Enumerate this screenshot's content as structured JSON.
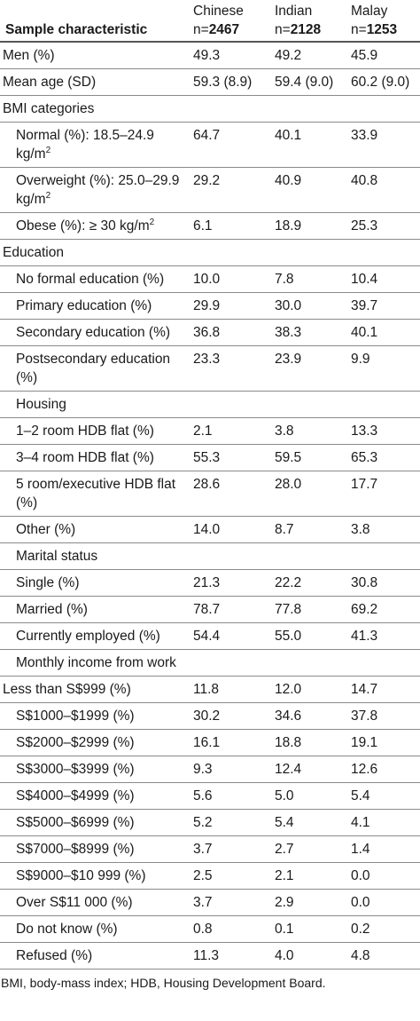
{
  "header": {
    "first": "Sample characteristic",
    "columns": [
      {
        "name": "Chinese",
        "n_prefix": "n=",
        "n_value": "2467"
      },
      {
        "name": "Indian",
        "n_prefix": "n=",
        "n_value": "2128"
      },
      {
        "name": "Malay",
        "n_prefix": "n=",
        "n_value": "1253"
      }
    ]
  },
  "rows": [
    {
      "label": "Men (%)",
      "indent": false,
      "values": [
        "49.3",
        "49.2",
        "45.9"
      ]
    },
    {
      "label": "Mean age (SD)",
      "indent": false,
      "values": [
        "59.3 (8.9)",
        "59.4 (9.0)",
        "60.2 (9.0)"
      ]
    },
    {
      "label": "BMI categories",
      "indent": false,
      "values": [
        "",
        "",
        ""
      ]
    },
    {
      "label": "Normal (%): 18.5–24.9 kg/m",
      "sup": "2",
      "indent": true,
      "values": [
        "64.7",
        "40.1",
        "33.9"
      ]
    },
    {
      "label": "Overweight (%): 25.0–29.9 kg/m",
      "sup": "2",
      "indent": true,
      "values": [
        "29.2",
        "40.9",
        "40.8"
      ]
    },
    {
      "label": "Obese (%): ≥ 30 kg/m",
      "sup": "2",
      "indent": true,
      "values": [
        "6.1",
        "18.9",
        "25.3"
      ]
    },
    {
      "label": "Education",
      "indent": false,
      "values": [
        "",
        "",
        ""
      ]
    },
    {
      "label": "No formal education (%)",
      "indent": true,
      "values": [
        "10.0",
        "7.8",
        "10.4"
      ]
    },
    {
      "label": "Primary education (%)",
      "indent": true,
      "values": [
        "29.9",
        "30.0",
        "39.7"
      ]
    },
    {
      "label": "Secondary education (%)",
      "indent": true,
      "values": [
        "36.8",
        "38.3",
        "40.1"
      ]
    },
    {
      "label": "Postsecondary education (%)",
      "indent": true,
      "values": [
        "23.3",
        "23.9",
        "9.9"
      ]
    },
    {
      "label": "Housing",
      "indent": true,
      "values": [
        "",
        "",
        ""
      ]
    },
    {
      "label": "1–2 room HDB flat (%)",
      "indent": true,
      "values": [
        "2.1",
        "3.8",
        "13.3"
      ]
    },
    {
      "label": "3–4 room HDB flat (%)",
      "indent": true,
      "values": [
        "55.3",
        "59.5",
        "65.3"
      ]
    },
    {
      "label": "5 room/executive HDB flat (%)",
      "indent": true,
      "values": [
        "28.6",
        "28.0",
        "17.7"
      ]
    },
    {
      "label": "Other (%)",
      "indent": true,
      "values": [
        "14.0",
        "8.7",
        "3.8"
      ]
    },
    {
      "label": "Marital status",
      "indent": true,
      "values": [
        "",
        "",
        ""
      ]
    },
    {
      "label": "Single (%)",
      "indent": true,
      "values": [
        "21.3",
        "22.2",
        "30.8"
      ]
    },
    {
      "label": "Married (%)",
      "indent": true,
      "values": [
        "78.7",
        "77.8",
        "69.2"
      ]
    },
    {
      "label": "Currently employed (%)",
      "indent": true,
      "values": [
        "54.4",
        "55.0",
        "41.3"
      ]
    },
    {
      "label": "Monthly income from work",
      "indent": true,
      "values": [
        "",
        "",
        ""
      ]
    },
    {
      "label": "Less than S$999 (%)",
      "indent": false,
      "values": [
        "11.8",
        "12.0",
        "14.7"
      ]
    },
    {
      "label": "S$1000–$1999 (%)",
      "indent": true,
      "values": [
        "30.2",
        "34.6",
        "37.8"
      ]
    },
    {
      "label": "S$2000–$2999 (%)",
      "indent": true,
      "values": [
        "16.1",
        "18.8",
        "19.1"
      ]
    },
    {
      "label": "S$3000–$3999 (%)",
      "indent": true,
      "values": [
        "9.3",
        "12.4",
        "12.6"
      ]
    },
    {
      "label": "S$4000–$4999 (%)",
      "indent": true,
      "values": [
        "5.6",
        "5.0",
        "5.4"
      ]
    },
    {
      "label": "S$5000–$6999 (%)",
      "indent": true,
      "values": [
        "5.2",
        "5.4",
        "4.1"
      ]
    },
    {
      "label": "S$7000–$8999 (%)",
      "indent": true,
      "values": [
        "3.7",
        "2.7",
        "1.4"
      ]
    },
    {
      "label": "S$9000–$10 999 (%)",
      "indent": true,
      "values": [
        "2.5",
        "2.1",
        "0.0"
      ]
    },
    {
      "label": "Over S$11 000 (%)",
      "indent": true,
      "values": [
        "3.7",
        "2.9",
        "0.0"
      ]
    },
    {
      "label": "Do not know (%)",
      "indent": true,
      "values": [
        "0.8",
        "0.1",
        "0.2"
      ]
    },
    {
      "label": "Refused (%)",
      "indent": true,
      "values": [
        "11.3",
        "4.0",
        "4.8"
      ]
    }
  ],
  "footnote": "BMI, body-mass index; HDB, Housing Development Board."
}
